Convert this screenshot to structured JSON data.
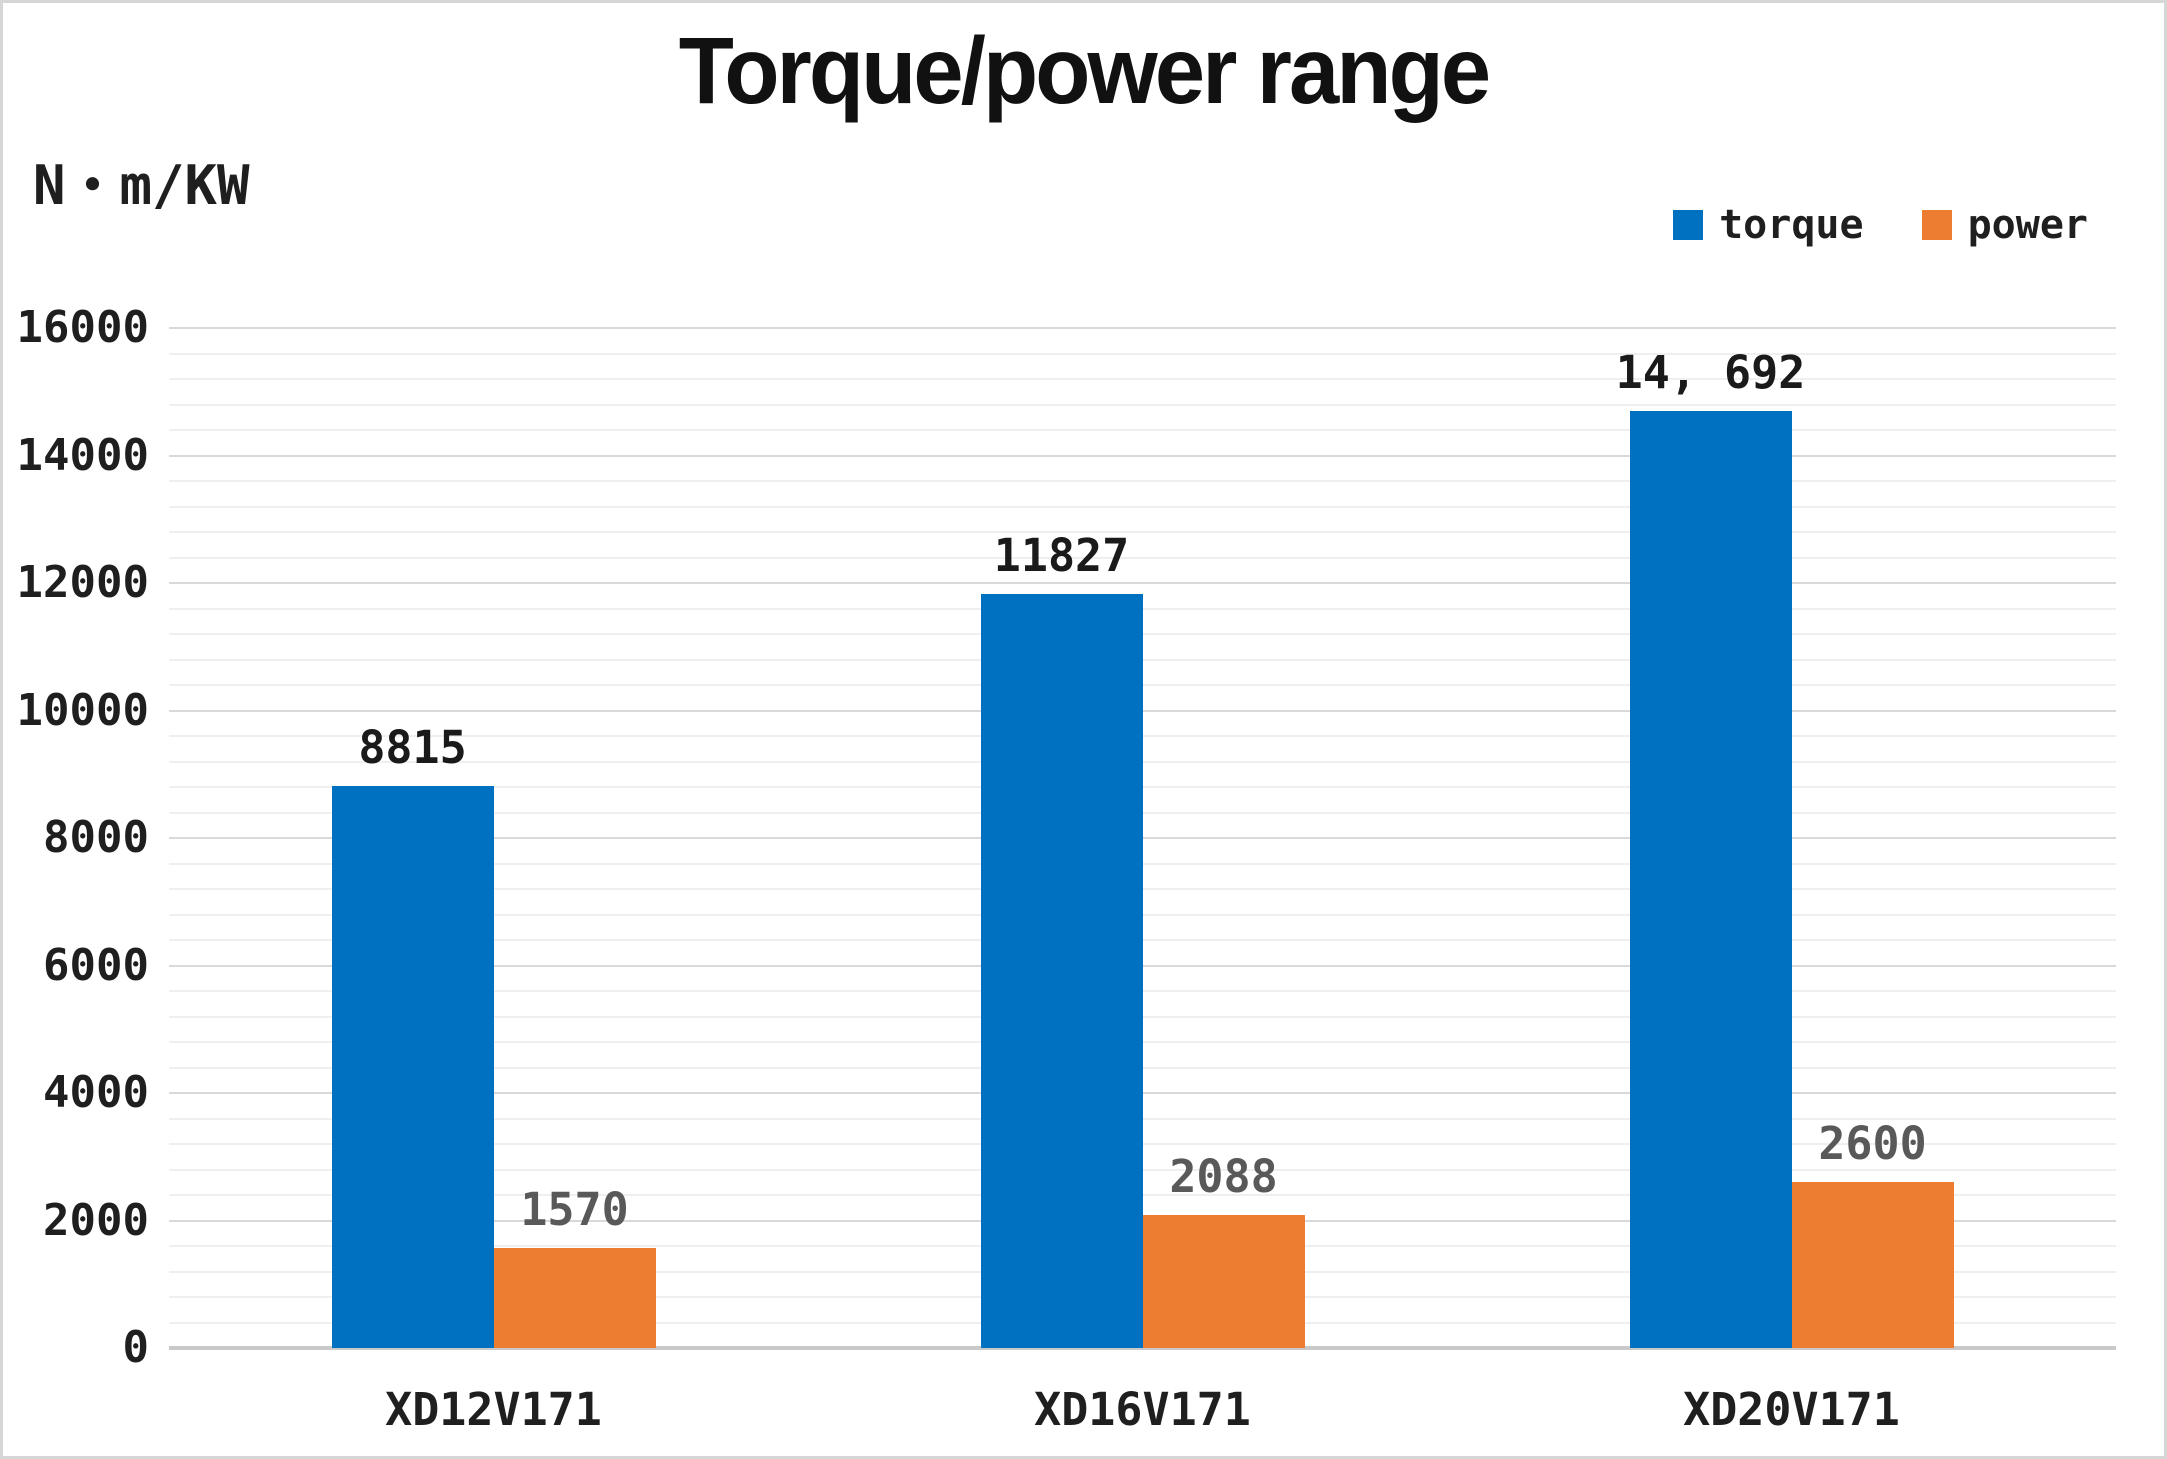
{
  "chart_data": {
    "type": "bar",
    "title": "Torque/power range",
    "unit_label": "N・m/KW",
    "categories": [
      "XD12V171",
      "XD16V171",
      "XD20V171"
    ],
    "series": [
      {
        "name": "torque",
        "color": "#0070C0",
        "values": [
          8815,
          11827,
          14692
        ],
        "labels": [
          "8815",
          "11827",
          "14, 692"
        ],
        "label_color": "#1a1a1a"
      },
      {
        "name": "power",
        "color": "#ED7D31",
        "values": [
          1570,
          2088,
          2600
        ],
        "labels": [
          "1570",
          "2088",
          "2600"
        ],
        "label_color": "#595959"
      }
    ],
    "y_axis": {
      "min": 0,
      "max": 16000,
      "major": 2000,
      "minor": 400,
      "tick_labels": [
        "0",
        "2000",
        "4000",
        "6000",
        "8000",
        "10000",
        "12000",
        "14000",
        "16000"
      ]
    },
    "legend_position": "top-right",
    "grid": true
  }
}
